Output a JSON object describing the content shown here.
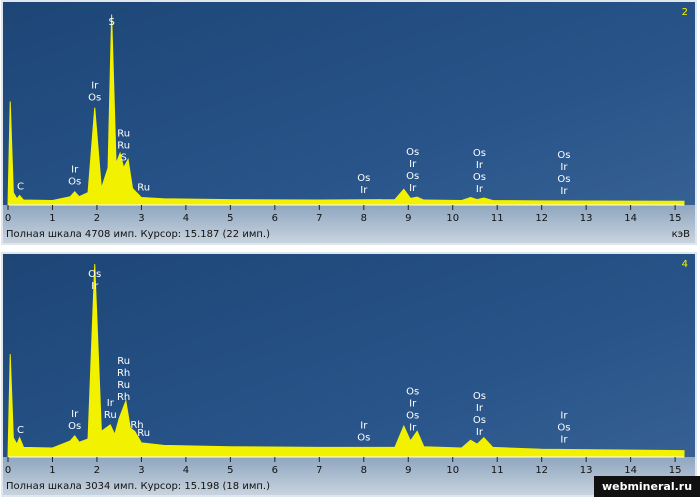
{
  "chart_data": [
    {
      "type": "area",
      "title": "2",
      "color": "#f2f200",
      "footer": "Полная шкала 4708 имп. Курсор: 15.187  (22 имп.)",
      "x_label": "кэВ",
      "x": [
        0,
        0.05,
        0.12,
        0.2,
        0.26,
        0.35,
        1.0,
        1.4,
        1.5,
        1.6,
        1.8,
        1.95,
        2.1,
        2.25,
        2.33,
        2.43,
        2.52,
        2.6,
        2.7,
        2.8,
        3.0,
        3.5,
        5,
        7,
        8.7,
        8.9,
        9.05,
        9.2,
        9.35,
        10.2,
        10.4,
        10.55,
        10.7,
        10.9,
        12,
        15.2
      ],
      "values": [
        0,
        2500,
        300,
        150,
        230,
        120,
        110,
        200,
        320,
        200,
        300,
        2350,
        400,
        900,
        4600,
        1000,
        1250,
        900,
        1100,
        400,
        180,
        150,
        130,
        120,
        130,
        380,
        160,
        190,
        120,
        110,
        180,
        130,
        170,
        110,
        100,
        90
      ],
      "xlim": [
        0,
        15.2
      ],
      "ylim": [
        0,
        4708
      ],
      "xticks": [
        0,
        1,
        2,
        3,
        4,
        5,
        6,
        7,
        8,
        9,
        10,
        11,
        12,
        13,
        14,
        15
      ],
      "peak_labels": [
        {
          "x": 0.28,
          "labels": [
            "C"
          ]
        },
        {
          "x": 1.5,
          "labels": [
            "Ir",
            "Os"
          ]
        },
        {
          "x": 1.95,
          "labels": [
            "Ir",
            "Os"
          ]
        },
        {
          "x": 2.33,
          "labels": [
            "S"
          ]
        },
        {
          "x": 2.6,
          "labels": [
            "Ru",
            "Ru",
            "S"
          ]
        },
        {
          "x": 3.05,
          "labels": [
            "Ru"
          ]
        },
        {
          "x": 8.0,
          "labels": [
            "Os",
            "Ir"
          ]
        },
        {
          "x": 9.1,
          "labels": [
            "Os",
            "Ir",
            "Os",
            "Ir"
          ]
        },
        {
          "x": 10.6,
          "labels": [
            "Os",
            "Ir",
            "Os",
            "Ir"
          ]
        },
        {
          "x": 12.5,
          "labels": [
            "Os",
            "Ir",
            "Os",
            "Ir"
          ]
        }
      ]
    },
    {
      "type": "area",
      "title": "4",
      "color": "#f2f200",
      "footer": "Полная шкала 3034 имп. Курсор: 15.198  (18 имп.)",
      "x_label": "кэВ",
      "x": [
        0,
        0.05,
        0.12,
        0.2,
        0.26,
        0.35,
        1.0,
        1.4,
        1.5,
        1.6,
        1.8,
        1.95,
        2.1,
        2.3,
        2.4,
        2.5,
        2.65,
        2.75,
        2.85,
        3.0,
        3.5,
        5,
        7,
        8.7,
        8.9,
        9.05,
        9.2,
        9.35,
        10.2,
        10.4,
        10.55,
        10.7,
        10.9,
        12,
        15.2
      ],
      "values": [
        0,
        1600,
        300,
        200,
        300,
        150,
        140,
        250,
        330,
        230,
        280,
        3000,
        400,
        500,
        350,
        600,
        870,
        450,
        400,
        220,
        180,
        160,
        150,
        150,
        480,
        250,
        400,
        160,
        140,
        260,
        200,
        300,
        150,
        120,
        100
      ],
      "xlim": [
        0,
        15.2
      ],
      "ylim": [
        0,
        3034
      ],
      "xticks": [
        0,
        1,
        2,
        3,
        4,
        5,
        6,
        7,
        8,
        9,
        10,
        11,
        12,
        13,
        14,
        15
      ],
      "peak_labels": [
        {
          "x": 0.28,
          "labels": [
            "C"
          ]
        },
        {
          "x": 1.5,
          "labels": [
            "Ir",
            "Os"
          ]
        },
        {
          "x": 1.95,
          "labels": [
            "Os",
            "Ir"
          ]
        },
        {
          "x": 2.3,
          "labels": [
            "Ir",
            "Ru"
          ]
        },
        {
          "x": 2.6,
          "labels": [
            "Ru",
            "Rh",
            "Ru",
            "Rh"
          ]
        },
        {
          "x": 2.9,
          "labels": [
            "Rh"
          ]
        },
        {
          "x": 3.05,
          "labels": [
            "Ru"
          ]
        },
        {
          "x": 8.0,
          "labels": [
            "Ir",
            "Os"
          ]
        },
        {
          "x": 9.1,
          "labels": [
            "Os",
            "Ir",
            "Os",
            "Ir"
          ]
        },
        {
          "x": 10.6,
          "labels": [
            "Os",
            "Ir",
            "Os",
            "Ir"
          ]
        },
        {
          "x": 12.5,
          "labels": [
            "Ir",
            "Os",
            "Ir"
          ]
        }
      ]
    }
  ],
  "watermark": "webmineral.ru"
}
